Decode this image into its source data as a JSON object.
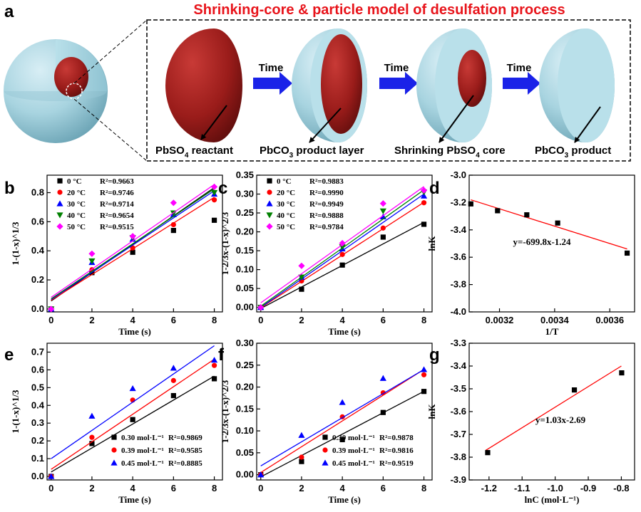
{
  "panel_a": {
    "label": "a",
    "title": "Shrinking-core & particle model of desulfation process",
    "arrow_label": "Time",
    "captions": [
      "PbSO",
      "reactant",
      "PbCO",
      "product layer",
      "Shrinking PbSO",
      "core",
      "PbCO",
      "product"
    ],
    "subscripts": [
      "4",
      "3",
      "4",
      "3"
    ],
    "colors": {
      "shell": "#a8d4e0",
      "core": "#a01e1c",
      "arrow": "#1a22e8",
      "title": "#e8141b"
    }
  },
  "chart_data": [
    {
      "panel": "b",
      "type": "scatter",
      "xlabel": "Time (s)",
      "ylabel": "1-(1-x)^1/3",
      "xlim": [
        -0.2,
        8.4
      ],
      "ylim": [
        -0.02,
        0.92
      ],
      "xticks": [
        "0",
        "2",
        "4",
        "6",
        "8"
      ],
      "yticks": [
        "0.0",
        "0.2",
        "0.4",
        "0.6",
        "0.8"
      ],
      "x": [
        0,
        2,
        4,
        6,
        8
      ],
      "series": [
        {
          "name": "0 °C",
          "r2": "R²=0.9663",
          "marker": "square",
          "color": "#000000",
          "values": [
            0.0,
            0.25,
            0.39,
            0.54,
            0.61
          ],
          "fit": [
            0.055,
            0.0975
          ]
        },
        {
          "name": "20 °C",
          "r2": "R²=0.9746",
          "marker": "circle",
          "color": "#ff0000",
          "values": [
            0.0,
            0.27,
            0.42,
            0.58,
            0.75
          ],
          "fit": [
            0.06,
            0.0885
          ]
        },
        {
          "name": "30 °C",
          "r2": "R²=0.9714",
          "marker": "triangle-up",
          "color": "#0000ff",
          "values": [
            0.0,
            0.32,
            0.48,
            0.65,
            0.79
          ],
          "fit": [
            0.065,
            0.0935
          ]
        },
        {
          "name": "40 °C",
          "r2": "R²=0.9654",
          "marker": "triangle-down",
          "color": "#008000",
          "values": [
            0.0,
            0.33,
            0.49,
            0.66,
            0.8
          ],
          "fit": [
            0.07,
            0.0945
          ]
        },
        {
          "name": "50 °C",
          "r2": "R²=0.9515",
          "marker": "diamond",
          "color": "#ff00ff",
          "values": [
            0.0,
            0.38,
            0.5,
            0.73,
            0.84
          ],
          "fit": [
            0.08,
            0.097
          ]
        }
      ]
    },
    {
      "panel": "c",
      "type": "scatter",
      "xlabel": "Time (s)",
      "ylabel": "1-2/3x-(1-x)^2/3",
      "xlim": [
        -0.2,
        8.4
      ],
      "ylim": [
        -0.012,
        0.35
      ],
      "xticks": [
        "0",
        "2",
        "4",
        "6",
        "8"
      ],
      "yticks": [
        "0.00",
        "0.05",
        "0.10",
        "0.15",
        "0.20",
        "0.25",
        "0.30",
        "0.35"
      ],
      "x": [
        0,
        2,
        4,
        6,
        8
      ],
      "series": [
        {
          "name": "0 °C",
          "r2": "R²=0.9883",
          "marker": "square",
          "color": "#000000",
          "values": [
            0.0,
            0.048,
            0.112,
            0.186,
            0.22
          ],
          "fit": [
            -0.003,
            0.0285
          ]
        },
        {
          "name": "20 °C",
          "r2": "R²=0.9990",
          "marker": "circle",
          "color": "#ff0000",
          "values": [
            0.0,
            0.07,
            0.14,
            0.21,
            0.277
          ],
          "fit": [
            -0.001,
            0.0349
          ]
        },
        {
          "name": "30 °C",
          "r2": "R²=0.9949",
          "marker": "triangle-up",
          "color": "#0000ff",
          "values": [
            0.0,
            0.08,
            0.155,
            0.24,
            0.295
          ],
          "fit": [
            0.0,
            0.0375
          ]
        },
        {
          "name": "40 °C",
          "r2": "R²=0.9888",
          "marker": "triangle-down",
          "color": "#008000",
          "values": [
            0.0,
            0.08,
            0.16,
            0.255,
            0.305
          ],
          "fit": [
            0.003,
            0.0385
          ]
        },
        {
          "name": "50 °C",
          "r2": "R²=0.9784",
          "marker": "diamond",
          "color": "#ff00ff",
          "values": [
            0.0,
            0.11,
            0.17,
            0.275,
            0.31
          ],
          "fit": [
            0.012,
            0.0385
          ]
        }
      ]
    },
    {
      "panel": "d",
      "type": "scatter",
      "xlabel": "1/T",
      "ylabel": "lnK",
      "xlim": [
        0.00309,
        0.00369
      ],
      "ylim": [
        -4.0,
        -3.0
      ],
      "xticks": [
        "0.0032",
        "0.0034",
        "0.0036"
      ],
      "xtick_values": [
        0.0032,
        0.0034,
        0.0036
      ],
      "yticks": [
        "-3.0",
        "-3.2",
        "-3.4",
        "-3.6",
        "-3.8",
        "-4.0"
      ],
      "ytick_values": [
        -3.0,
        -3.2,
        -3.4,
        -3.6,
        -3.8,
        -4.0
      ],
      "points": [
        [
          0.003096,
          -3.21
        ],
        [
          0.003193,
          -3.26
        ],
        [
          0.003299,
          -3.29
        ],
        [
          0.003411,
          -3.35
        ],
        [
          0.003663,
          -3.57
        ]
      ],
      "fit_line": [
        [
          0.003096,
          -3.18
        ],
        [
          0.003663,
          -3.54
        ]
      ],
      "equation": "y=-699.8x-1.24"
    },
    {
      "panel": "e",
      "type": "scatter",
      "xlabel": "Time (s)",
      "ylabel": "1-(1-x)^1/3",
      "xlim": [
        -0.2,
        8.4
      ],
      "ylim": [
        -0.02,
        0.75
      ],
      "xticks": [
        "0",
        "2",
        "4",
        "6",
        "8"
      ],
      "yticks": [
        "0.0",
        "0.1",
        "0.2",
        "0.3",
        "0.4",
        "0.5",
        "0.6",
        "0.7"
      ],
      "x": [
        0,
        2,
        4,
        6,
        8
      ],
      "series": [
        {
          "name": "0.30 mol·L⁻¹",
          "r2": "R²=0.9869",
          "marker": "square",
          "color": "#000000",
          "values": [
            0.0,
            0.185,
            0.32,
            0.455,
            0.55
          ],
          "fit": [
            0.025,
            0.0675
          ]
        },
        {
          "name": "0.39 mol·L⁻¹",
          "r2": "R²=0.9585",
          "marker": "circle",
          "color": "#ff0000",
          "values": [
            0.0,
            0.22,
            0.43,
            0.54,
            0.625
          ],
          "fit": [
            0.04,
            0.0775
          ]
        },
        {
          "name": "0.45 mol·L⁻¹",
          "r2": "R²=0.8885",
          "marker": "triangle-up",
          "color": "#0000ff",
          "values": [
            0.0,
            0.34,
            0.495,
            0.61,
            0.655
          ],
          "fit": [
            0.1,
            0.0795
          ]
        }
      ]
    },
    {
      "panel": "f",
      "type": "scatter",
      "xlabel": "Time (s)",
      "ylabel": "1-2/3x-(1-x)^2/3",
      "xlim": [
        -0.2,
        8.4
      ],
      "ylim": [
        -0.012,
        0.3
      ],
      "xticks": [
        "0",
        "2",
        "4",
        "6",
        "8"
      ],
      "yticks": [
        "0.00",
        "0.05",
        "0.10",
        "0.15",
        "0.20",
        "0.25",
        "0.30"
      ],
      "x": [
        0,
        2,
        4,
        6,
        8
      ],
      "series": [
        {
          "name": "0.30 mol·L⁻¹",
          "r2": "R²=0.9878",
          "marker": "square",
          "color": "#000000",
          "values": [
            0.0,
            0.03,
            0.08,
            0.142,
            0.19
          ],
          "fit": [
            -0.005,
            0.0244
          ]
        },
        {
          "name": "0.39 mol·L⁻¹",
          "r2": "R²=0.9816",
          "marker": "circle",
          "color": "#ff0000",
          "values": [
            0.0,
            0.04,
            0.132,
            0.187,
            0.228
          ],
          "fit": [
            0.005,
            0.0294
          ]
        },
        {
          "name": "0.45 mol·L⁻¹",
          "r2": "R²=0.9519",
          "marker": "triangle-up",
          "color": "#0000ff",
          "values": [
            0.0,
            0.09,
            0.165,
            0.22,
            0.24
          ],
          "fit": [
            0.02,
            0.0275
          ]
        }
      ]
    },
    {
      "panel": "g",
      "type": "scatter",
      "xlabel": "lnC (mol·L⁻¹)",
      "ylabel": "lnK",
      "xlim": [
        -1.26,
        -0.76
      ],
      "ylim": [
        -3.9,
        -3.3
      ],
      "xticks": [
        "-1.2",
        "-1.1",
        "-1.0",
        "-0.9",
        "-0.8"
      ],
      "xtick_values": [
        -1.2,
        -1.1,
        -1.0,
        -0.9,
        -0.8
      ],
      "yticks": [
        "-3.3",
        "-3.4",
        "-3.5",
        "-3.6",
        "-3.7",
        "-3.8",
        "-3.9"
      ],
      "ytick_values": [
        -3.3,
        -3.4,
        -3.5,
        -3.6,
        -3.7,
        -3.8,
        -3.9
      ],
      "points": [
        [
          -1.204,
          -3.78
        ],
        [
          -0.942,
          -3.505
        ],
        [
          -0.799,
          -3.43
        ]
      ],
      "fit_line": [
        [
          -1.21,
          -3.77
        ],
        [
          -0.8,
          -3.4
        ]
      ],
      "equation": "y=1.03x-2.69"
    }
  ]
}
